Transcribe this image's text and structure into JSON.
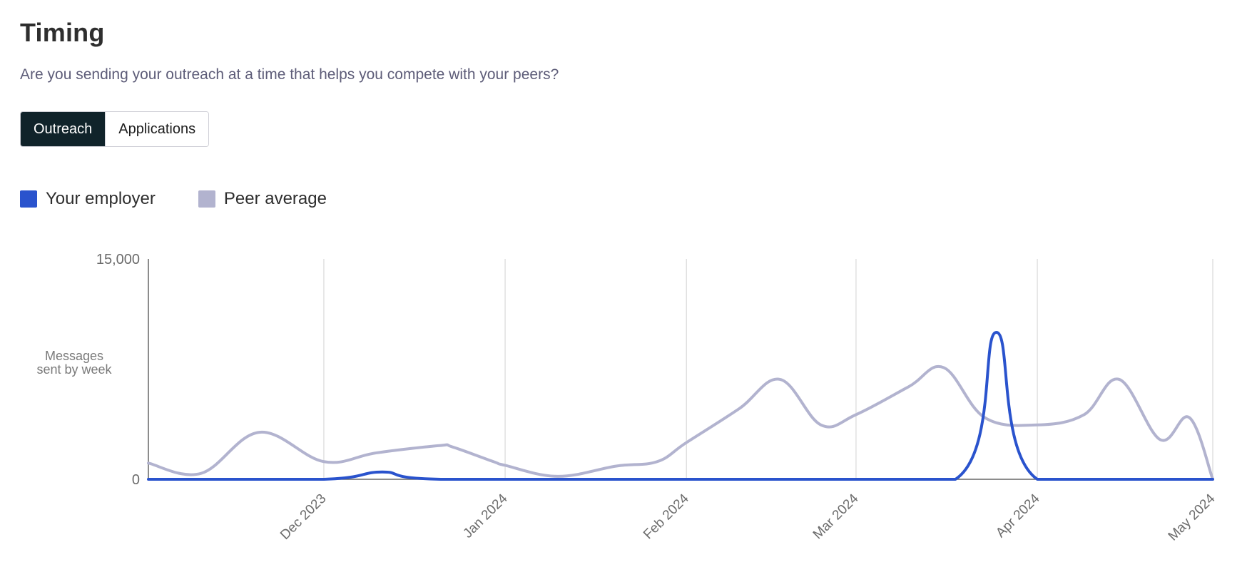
{
  "header": {
    "title": "Timing",
    "subtitle": "Are you sending your outreach at a time that helps you compete with your peers?"
  },
  "toggle": {
    "options": [
      "Outreach",
      "Applications"
    ],
    "selected": "Outreach"
  },
  "legend": {
    "items": [
      {
        "label": "Your employer",
        "color": "#2a53cd"
      },
      {
        "label": "Peer average",
        "color": "#b2b3cf"
      }
    ]
  },
  "chart_data": {
    "type": "line",
    "ylabel": "Messages sent by week",
    "ylim": [
      0,
      15000
    ],
    "yticks": [
      {
        "value": 0,
        "label": "0"
      },
      {
        "value": 15000,
        "label": "15,000"
      }
    ],
    "xlim": [
      "2023-11-01",
      "2024-05-01"
    ],
    "xticks": [
      {
        "date": "2023-12-01",
        "label": "Dec 2023"
      },
      {
        "date": "2024-01-01",
        "label": "Jan 2024"
      },
      {
        "date": "2024-02-01",
        "label": "Feb 2024"
      },
      {
        "date": "2024-03-01",
        "label": "Mar 2024"
      },
      {
        "date": "2024-04-01",
        "label": "Apr 2024"
      },
      {
        "date": "2024-05-01",
        "label": "May 2024"
      }
    ],
    "grid": "vertical",
    "series": [
      {
        "name": "Peer average",
        "color": "#b2b3cf",
        "points": [
          {
            "x": "2023-11-01",
            "y": 1100
          },
          {
            "x": "2023-11-10",
            "y": 400
          },
          {
            "x": "2023-11-20",
            "y": 3200
          },
          {
            "x": "2023-12-01",
            "y": 1200
          },
          {
            "x": "2023-12-10",
            "y": 1800
          },
          {
            "x": "2023-12-21",
            "y": 2300
          },
          {
            "x": "2023-12-23",
            "y": 2200
          },
          {
            "x": "2023-12-30",
            "y": 1200
          },
          {
            "x": "2024-01-01",
            "y": 950
          },
          {
            "x": "2024-01-10",
            "y": 200
          },
          {
            "x": "2024-01-20",
            "y": 900
          },
          {
            "x": "2024-01-27",
            "y": 1200
          },
          {
            "x": "2024-02-01",
            "y": 2500
          },
          {
            "x": "2024-02-10",
            "y": 4800
          },
          {
            "x": "2024-02-17",
            "y": 6800
          },
          {
            "x": "2024-02-24",
            "y": 3700
          },
          {
            "x": "2024-03-01",
            "y": 4400
          },
          {
            "x": "2024-03-10",
            "y": 6300
          },
          {
            "x": "2024-03-16",
            "y": 7600
          },
          {
            "x": "2024-03-23",
            "y": 4200
          },
          {
            "x": "2024-04-01",
            "y": 3700
          },
          {
            "x": "2024-04-09",
            "y": 4400
          },
          {
            "x": "2024-04-15",
            "y": 6800
          },
          {
            "x": "2024-04-22",
            "y": 2700
          },
          {
            "x": "2024-04-27",
            "y": 4200
          },
          {
            "x": "2024-05-01",
            "y": 0
          }
        ]
      },
      {
        "name": "Your employer",
        "color": "#2a53cd",
        "points": [
          {
            "x": "2023-11-01",
            "y": 0
          },
          {
            "x": "2023-12-01",
            "y": 0
          },
          {
            "x": "2023-12-11",
            "y": 500
          },
          {
            "x": "2023-12-21",
            "y": 0
          },
          {
            "x": "2024-03-18",
            "y": 0
          },
          {
            "x": "2024-03-25",
            "y": 10000
          },
          {
            "x": "2024-04-01",
            "y": 0
          },
          {
            "x": "2024-05-01",
            "y": 0
          }
        ]
      }
    ]
  }
}
